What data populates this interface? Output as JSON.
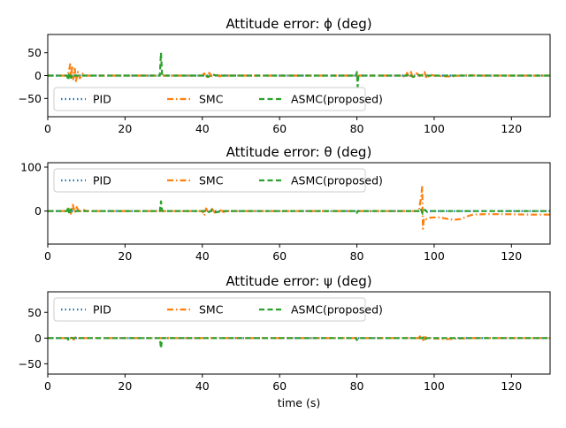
{
  "figure": {
    "background": "#ffffff"
  },
  "chart_data": [
    {
      "type": "line",
      "title": "Attitude error: ϕ (deg)",
      "xlabel": "",
      "ylabel": "",
      "xlim": [
        0,
        130
      ],
      "ylim": [
        -90,
        90
      ],
      "xticks": [
        0,
        20,
        40,
        60,
        80,
        100,
        120
      ],
      "yticks": [
        -50,
        0,
        50
      ],
      "legend": {
        "placement": "lower-left",
        "ncol": 3
      },
      "series": [
        {
          "name": "PID",
          "color": "#1f77b4",
          "dash": "dotted",
          "points": [
            [
              0,
              0
            ],
            [
              130,
              0
            ]
          ]
        },
        {
          "name": "SMC",
          "color": "#ff7f0e",
          "dash": "dashdot",
          "points": [
            [
              0,
              0
            ],
            [
              5,
              0
            ],
            [
              5.5,
              10
            ],
            [
              5.8,
              25
            ],
            [
              6,
              -5
            ],
            [
              6.3,
              18
            ],
            [
              6.6,
              -8
            ],
            [
              7,
              15
            ],
            [
              7.3,
              -12
            ],
            [
              7.8,
              8
            ],
            [
              8.3,
              -6
            ],
            [
              9,
              4
            ],
            [
              10,
              0
            ],
            [
              28,
              0
            ],
            [
              40,
              0
            ],
            [
              40.5,
              5
            ],
            [
              41,
              -4
            ],
            [
              41.8,
              6
            ],
            [
              42.5,
              -3
            ],
            [
              43.5,
              4
            ],
            [
              44.5,
              -2
            ],
            [
              45.5,
              3
            ],
            [
              46,
              0
            ],
            [
              80,
              0
            ],
            [
              92,
              0
            ],
            [
              92.5,
              -5
            ],
            [
              93,
              6
            ],
            [
              93.5,
              -3
            ],
            [
              94,
              8
            ],
            [
              94.5,
              -6
            ],
            [
              95.5,
              5
            ],
            [
              96.5,
              -3
            ],
            [
              97.5,
              8
            ],
            [
              98,
              -6
            ],
            [
              99,
              2
            ],
            [
              100,
              0
            ],
            [
              104,
              -2
            ],
            [
              108,
              1
            ],
            [
              112,
              0
            ],
            [
              130,
              0
            ]
          ]
        },
        {
          "name": "ASMC(proposed)",
          "color": "#2ca02c",
          "dash": "dashed",
          "points": [
            [
              0,
              0
            ],
            [
              5,
              0
            ],
            [
              5.3,
              -10
            ],
            [
              5.6,
              6
            ],
            [
              6,
              -5
            ],
            [
              6.5,
              3
            ],
            [
              7,
              0
            ],
            [
              29,
              0
            ],
            [
              29.3,
              50
            ],
            [
              29.6,
              0
            ],
            [
              40,
              0
            ],
            [
              40.5,
              3
            ],
            [
              41.5,
              -3
            ],
            [
              42.5,
              2
            ],
            [
              44,
              0
            ],
            [
              79.8,
              0
            ],
            [
              80,
              8
            ],
            [
              80.2,
              -25
            ],
            [
              80.4,
              0
            ],
            [
              93,
              0
            ],
            [
              93.5,
              4
            ],
            [
              94.5,
              -3
            ],
            [
              95.5,
              2
            ],
            [
              97,
              0
            ],
            [
              130,
              0
            ]
          ]
        }
      ]
    },
    {
      "type": "line",
      "title": "Attitude error: θ (deg)",
      "xlabel": "",
      "ylabel": "",
      "xlim": [
        0,
        130
      ],
      "ylim": [
        -75,
        110
      ],
      "xticks": [
        0,
        20,
        40,
        60,
        80,
        100,
        120
      ],
      "yticks": [
        0,
        100
      ],
      "legend": {
        "placement": "upper-left",
        "ncol": 3
      },
      "series": [
        {
          "name": "PID",
          "color": "#1f77b4",
          "dash": "dotted",
          "points": [
            [
              0,
              0
            ],
            [
              130,
              0
            ]
          ]
        },
        {
          "name": "SMC",
          "color": "#ff7f0e",
          "dash": "dashdot",
          "points": [
            [
              0,
              0
            ],
            [
              5,
              0
            ],
            [
              5.5,
              8
            ],
            [
              6,
              -6
            ],
            [
              6.5,
              14
            ],
            [
              7,
              -4
            ],
            [
              7.5,
              9
            ],
            [
              8.2,
              -3
            ],
            [
              9,
              4
            ],
            [
              10,
              0
            ],
            [
              40,
              0
            ],
            [
              40.5,
              -10
            ],
            [
              41,
              6
            ],
            [
              41.5,
              -4
            ],
            [
              42.5,
              5
            ],
            [
              43.5,
              -6
            ],
            [
              44.5,
              3
            ],
            [
              45.5,
              -2
            ],
            [
              46,
              0
            ],
            [
              96,
              0
            ],
            [
              96.6,
              30
            ],
            [
              96.9,
              55
            ],
            [
              97.1,
              -40
            ],
            [
              97.3,
              -20
            ],
            [
              97.6,
              -15
            ],
            [
              98,
              -18
            ],
            [
              99,
              -15
            ],
            [
              101,
              -14
            ],
            [
              103,
              -17
            ],
            [
              105,
              -20
            ],
            [
              107,
              -18
            ],
            [
              108.5,
              -12
            ],
            [
              110,
              -8
            ],
            [
              113,
              -7
            ],
            [
              118,
              -7
            ],
            [
              125,
              -8
            ],
            [
              130,
              -8
            ]
          ]
        },
        {
          "name": "ASMC(proposed)",
          "color": "#2ca02c",
          "dash": "dashed",
          "points": [
            [
              0,
              0
            ],
            [
              5,
              0
            ],
            [
              5.3,
              10
            ],
            [
              5.6,
              -8
            ],
            [
              6,
              4
            ],
            [
              6.5,
              0
            ],
            [
              29,
              0
            ],
            [
              29.3,
              22
            ],
            [
              29.6,
              0
            ],
            [
              41,
              0
            ],
            [
              41.5,
              -4
            ],
            [
              42.5,
              3
            ],
            [
              43.5,
              -3
            ],
            [
              45,
              0
            ],
            [
              79.8,
              0
            ],
            [
              80,
              -4
            ],
            [
              80.2,
              0
            ],
            [
              96,
              0
            ],
            [
              96.5,
              6
            ],
            [
              97,
              -6
            ],
            [
              97.6,
              3
            ],
            [
              98.2,
              -2
            ],
            [
              99,
              0
            ],
            [
              130,
              0
            ]
          ]
        }
      ]
    },
    {
      "type": "line",
      "title": "Attitude error: ψ (deg)",
      "xlabel": "time (s)",
      "ylabel": "",
      "xlim": [
        0,
        130
      ],
      "ylim": [
        -70,
        90
      ],
      "xticks": [
        0,
        20,
        40,
        60,
        80,
        100,
        120
      ],
      "yticks": [
        -50,
        0,
        50
      ],
      "legend": {
        "placement": "upper-left",
        "ncol": 3
      },
      "series": [
        {
          "name": "PID",
          "color": "#1f77b4",
          "dash": "dotted",
          "points": [
            [
              0,
              0
            ],
            [
              130,
              0
            ]
          ]
        },
        {
          "name": "SMC",
          "color": "#ff7f0e",
          "dash": "dashdot",
          "points": [
            [
              0,
              0
            ],
            [
              6,
              0
            ],
            [
              6.3,
              3
            ],
            [
              6.7,
              -3
            ],
            [
              7.2,
              2
            ],
            [
              8,
              0
            ],
            [
              96,
              0
            ],
            [
              96.5,
              5
            ],
            [
              97,
              -6
            ],
            [
              97.6,
              2
            ],
            [
              98.5,
              0
            ],
            [
              103,
              -2
            ],
            [
              106,
              -1
            ],
            [
              110,
              0
            ],
            [
              130,
              0
            ]
          ]
        },
        {
          "name": "ASMC(proposed)",
          "color": "#2ca02c",
          "dash": "dashed",
          "points": [
            [
              0,
              0
            ],
            [
              5,
              0
            ],
            [
              5.3,
              -3
            ],
            [
              5.7,
              2
            ],
            [
              6.2,
              0
            ],
            [
              29,
              0
            ],
            [
              29.3,
              -20
            ],
            [
              29.6,
              0
            ],
            [
              79.8,
              0
            ],
            [
              80,
              -4
            ],
            [
              80.2,
              0
            ],
            [
              97,
              0
            ],
            [
              97.3,
              3
            ],
            [
              97.7,
              -2
            ],
            [
              98.2,
              0
            ],
            [
              130,
              0
            ]
          ]
        }
      ]
    }
  ]
}
